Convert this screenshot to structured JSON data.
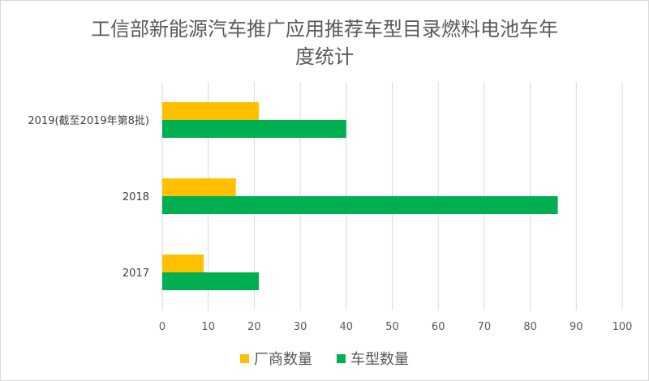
{
  "chart_data": {
    "type": "bar",
    "orientation": "horizontal",
    "title": "工信部新能源汽车推广应用推荐车型目录燃料电池车年度统计",
    "title_lines": [
      "工信部新能源汽车推广应用推荐车型目录燃料电池车年",
      "度统计"
    ],
    "categories": [
      "2019(截至2019年第8批)",
      "2018",
      "2017"
    ],
    "series": [
      {
        "name": "厂商数量",
        "color": "#ffc000",
        "values": [
          21,
          16,
          9
        ]
      },
      {
        "name": "车型数量",
        "color": "#00b050",
        "values": [
          40,
          86,
          21
        ]
      }
    ],
    "xlim": [
      0,
      100
    ],
    "xticks": [
      0,
      10,
      20,
      30,
      40,
      50,
      60,
      70,
      80,
      90,
      100
    ],
    "grid": true,
    "legend_position": "bottom"
  }
}
